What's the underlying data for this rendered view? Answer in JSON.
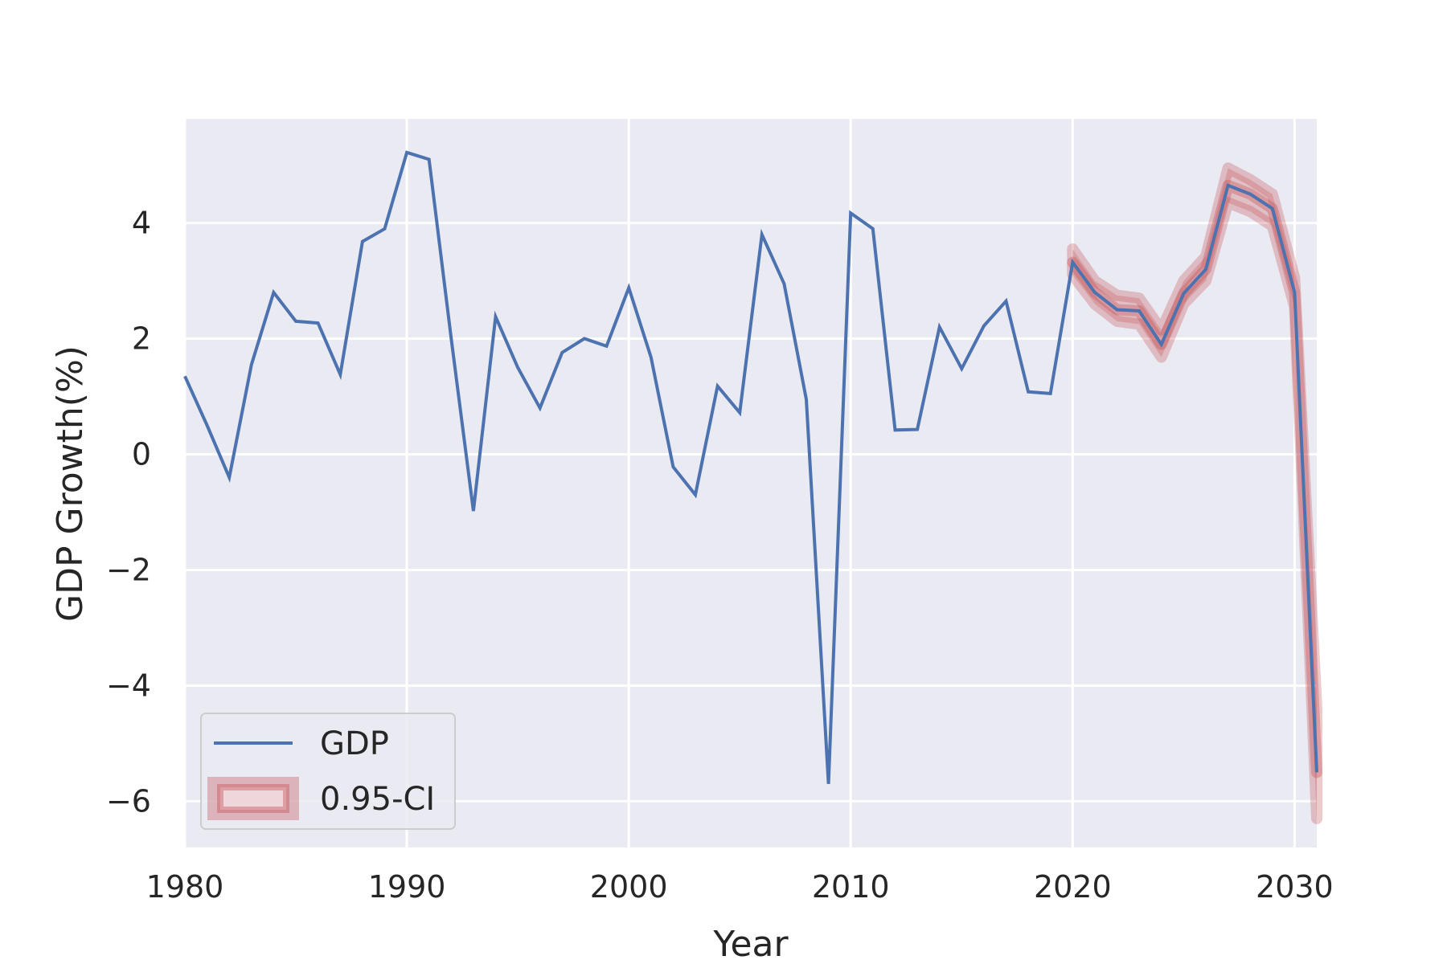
{
  "chart_data": {
    "type": "line",
    "xlabel": "Year",
    "ylabel": "GDP Growth(%)",
    "xlim": [
      1980,
      2031
    ],
    "ylim": [
      -6.8,
      5.8
    ],
    "xticks": [
      1980,
      1990,
      2000,
      2010,
      2020,
      2030
    ],
    "yticks": [
      -6,
      -4,
      -2,
      0,
      2,
      4
    ],
    "grid": true,
    "legend_position": "lower-left",
    "series": [
      {
        "name": "GDP",
        "color": "#4c72b0",
        "x": [
          1980,
          1981,
          1982,
          1983,
          1984,
          1985,
          1986,
          1987,
          1988,
          1989,
          1990,
          1991,
          1992,
          1993,
          1994,
          1995,
          1996,
          1997,
          1998,
          1999,
          2000,
          2001,
          2002,
          2003,
          2004,
          2005,
          2006,
          2007,
          2008,
          2009,
          2010,
          2011,
          2012,
          2013,
          2014,
          2015,
          2016,
          2017,
          2018,
          2019,
          2020,
          2021,
          2022,
          2023,
          2024,
          2025,
          2026,
          2027,
          2028,
          2029,
          2030,
          2031
        ],
        "y": [
          1.35,
          0.5,
          -0.4,
          1.55,
          2.8,
          2.3,
          2.27,
          1.38,
          3.68,
          3.9,
          5.22,
          5.1,
          2.0,
          -0.98,
          2.38,
          1.5,
          0.8,
          1.76,
          2.0,
          1.87,
          2.88,
          1.68,
          -0.22,
          -0.7,
          1.18,
          0.72,
          3.8,
          2.95,
          0.95,
          -5.7,
          4.17,
          3.9,
          0.42,
          0.43,
          2.2,
          1.48,
          2.22,
          2.65,
          1.08,
          1.05,
          3.32,
          2.8,
          2.5,
          2.48,
          1.9,
          2.78,
          3.2,
          4.65,
          4.5,
          4.25,
          2.8,
          -5.5
        ]
      },
      {
        "name": "0.95-CI",
        "color": "#c44e52",
        "type": "band",
        "x": [
          2020,
          2021,
          2022,
          2023,
          2024,
          2025,
          2026,
          2027,
          2028,
          2029,
          2030,
          2031
        ],
        "lower": [
          3.1,
          2.6,
          2.3,
          2.25,
          1.68,
          2.6,
          3.0,
          4.35,
          4.2,
          3.95,
          2.55,
          -6.3
        ],
        "upper": [
          3.55,
          3.0,
          2.75,
          2.7,
          2.15,
          3.0,
          3.42,
          4.95,
          4.75,
          4.5,
          3.05,
          -4.4
        ]
      }
    ]
  }
}
